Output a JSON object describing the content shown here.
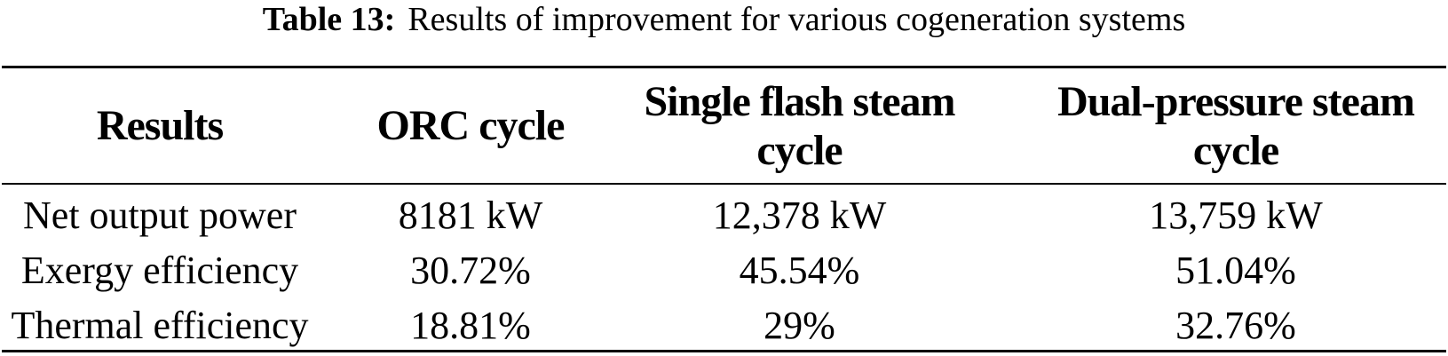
{
  "caption": {
    "label": "Table 13:",
    "title": "Results of improvement for various cogeneration systems"
  },
  "table": {
    "headers": [
      "Results",
      "ORC cycle",
      "Single flash steam\ncycle",
      "Dual-pressure steam\ncycle"
    ],
    "rows": [
      {
        "cells": [
          "Net output power",
          "8181 kW",
          "12,378 kW",
          "13,759 kW"
        ]
      },
      {
        "cells": [
          "Exergy efficiency",
          "30.72%",
          "45.54%",
          "51.04%"
        ]
      },
      {
        "cells": [
          "Thermal efficiency",
          "18.81%",
          "29%",
          "32.76%"
        ]
      }
    ]
  },
  "colors": {
    "text": "#000000",
    "background": "#ffffff",
    "rule": "#000000"
  }
}
